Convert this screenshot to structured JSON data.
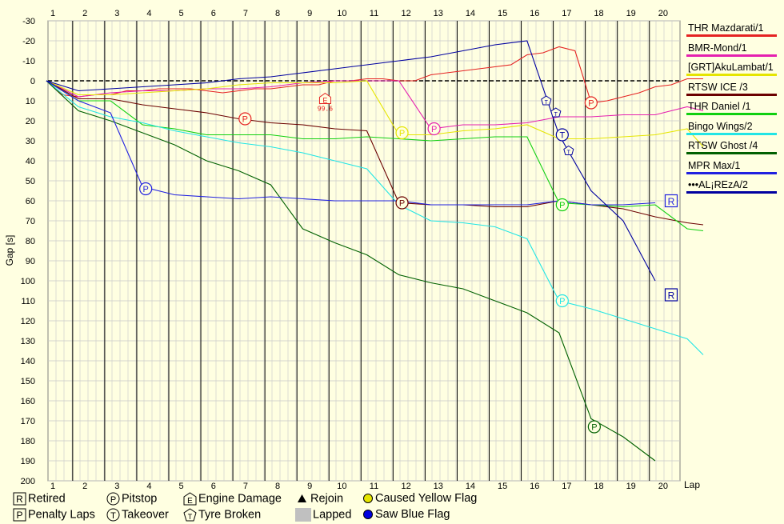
{
  "chart_data": {
    "type": "line",
    "title": "",
    "xlabel": "Lap",
    "ylabel": "Gap [s]",
    "ylim": [
      -30,
      200
    ],
    "y_inverted": true,
    "y_ticks": [
      -30,
      -20,
      -10,
      0,
      10,
      20,
      30,
      40,
      50,
      60,
      70,
      80,
      90,
      100,
      110,
      120,
      130,
      140,
      150,
      160,
      170,
      180,
      190,
      200
    ],
    "x_ticks": [
      1,
      2,
      3,
      4,
      5,
      6,
      7,
      8,
      9,
      10,
      11,
      12,
      13,
      14,
      15,
      16,
      17,
      18,
      19,
      20
    ],
    "grid": true,
    "legend_position": "right",
    "series": [
      {
        "name": "THR Mazdarati/1",
        "color": "#e52222",
        "x": [
          0,
          0.5,
          1,
          1.5,
          2,
          2.5,
          3,
          3.5,
          4,
          4.5,
          5,
          5.5,
          6,
          6.5,
          7,
          7.5,
          8,
          8.5,
          9,
          9.5,
          10,
          10.5,
          11,
          11.5,
          12,
          12.5,
          13,
          13.5,
          14,
          14.5,
          15,
          15.5,
          16,
          16.5,
          17,
          17.5,
          18,
          18.5,
          19,
          19.5,
          20,
          20.5
        ],
        "values": [
          0,
          7,
          8,
          7,
          7,
          5,
          5,
          4,
          4,
          4,
          5,
          6,
          5,
          4,
          4,
          3,
          2,
          2,
          0,
          0,
          -1,
          -1,
          0,
          0,
          -3,
          -4,
          -5,
          -6,
          -7,
          -8,
          -13,
          -14,
          -17,
          -15,
          11,
          10,
          8,
          6,
          3,
          2,
          -1,
          -1
        ]
      },
      {
        "name": "BMR-Mond/1",
        "color": "#e520b0",
        "x": [
          0,
          1,
          2,
          3,
          4,
          5,
          6,
          7,
          8,
          9,
          10,
          11,
          12,
          13,
          14,
          15,
          16,
          17,
          18,
          19,
          20,
          20.5
        ],
        "values": [
          0,
          8,
          6,
          5,
          5,
          4,
          4,
          3,
          1,
          0,
          0,
          0,
          24,
          22,
          22,
          21,
          18,
          18,
          17,
          17,
          13,
          15
        ]
      },
      {
        "name": "[GRT]AkuLambat/1",
        "color": "#e5e500",
        "x": [
          0,
          1,
          2,
          3,
          4,
          5,
          6,
          7,
          8,
          9,
          10,
          11,
          12,
          13,
          14,
          15,
          16,
          17,
          18,
          19,
          20,
          20.5
        ],
        "values": [
          0,
          7,
          7,
          6,
          5,
          4,
          2,
          1,
          1,
          1,
          0,
          27,
          27,
          25,
          24,
          22,
          29,
          29,
          28,
          27,
          24,
          33
        ]
      },
      {
        "name": "RTSW ICE /3",
        "color": "#6b0000",
        "x": [
          0,
          1,
          2,
          3,
          4,
          5,
          6,
          7,
          8,
          9,
          10,
          11,
          12,
          13,
          14,
          15,
          16,
          17,
          18,
          19,
          20,
          20.5
        ],
        "values": [
          0,
          9,
          9,
          12,
          14,
          16,
          19,
          21,
          22,
          24,
          25,
          61,
          62,
          62,
          63,
          63,
          60,
          62,
          64,
          68,
          71,
          72
        ]
      },
      {
        "name": "THR Daniel /1",
        "color": "#10d010",
        "x": [
          0,
          1,
          2,
          3,
          4,
          5,
          6,
          7,
          8,
          9,
          10,
          11,
          12,
          13,
          14,
          15,
          16,
          17,
          18,
          19,
          20,
          20.5
        ],
        "values": [
          0,
          10,
          10,
          22,
          24,
          27,
          27,
          27,
          29,
          29,
          28,
          29,
          30,
          29,
          28,
          28,
          61,
          62,
          63,
          62,
          74,
          75
        ]
      },
      {
        "name": "Bingo Wings/2",
        "color": "#22e5e5",
        "x": [
          0,
          1,
          2,
          3,
          4,
          5,
          6,
          7,
          8,
          9,
          10,
          11,
          12,
          13,
          14,
          15,
          16,
          17,
          18,
          19,
          20,
          20.5
        ],
        "values": [
          0,
          13,
          18,
          21,
          25,
          28,
          31,
          33,
          36,
          40,
          44,
          62,
          70,
          71,
          73,
          79,
          110,
          114,
          119,
          124,
          129,
          137
        ]
      },
      {
        "name": "RTSW Ghost /4",
        "color": "#006000",
        "x": [
          0,
          1,
          2,
          3,
          4,
          5,
          6,
          7,
          8,
          9,
          10,
          11,
          12,
          13,
          14,
          15,
          16,
          17,
          18,
          19
        ],
        "values": [
          0,
          15,
          20,
          26,
          32,
          40,
          45,
          52,
          74,
          81,
          87,
          97,
          101,
          104,
          110,
          116,
          126,
          169,
          178,
          190
        ]
      },
      {
        "name": "MPR Max/1",
        "color": "#2020e0",
        "x": [
          0,
          1,
          2,
          3,
          4,
          5,
          6,
          7,
          8,
          9,
          10,
          11,
          12,
          13,
          14,
          15,
          16,
          17,
          18,
          19,
          20
        ],
        "values": [
          0,
          10,
          16,
          53,
          57,
          58,
          59,
          58,
          59,
          60,
          60,
          60,
          62,
          62,
          62,
          62,
          60,
          62,
          62,
          61,
          null
        ]
      },
      {
        "name": "•••AL¡REzA/2",
        "color": "#0000a0",
        "x": [
          0,
          1,
          2,
          3,
          4,
          5,
          6,
          7,
          8,
          9,
          10,
          11,
          12,
          13,
          14,
          15,
          16,
          17,
          18,
          19
        ],
        "values": [
          0,
          5,
          4,
          3,
          2,
          1,
          -1,
          -2,
          -4,
          -6,
          -8,
          -10,
          -12,
          -15,
          -18,
          -20,
          27,
          55,
          70,
          100
        ]
      }
    ],
    "annotations": [
      {
        "type": "Pitstop",
        "series": "THR Mazdarati/1",
        "lap": 6.4,
        "gap": 19
      },
      {
        "type": "Engine Damage",
        "series": "THR Mazdarati/1",
        "lap": 8.9,
        "gap": 9,
        "label": "99.6"
      },
      {
        "type": "Pitstop",
        "series": "THR Mazdarati/1",
        "lap": 17.2,
        "gap": 11
      },
      {
        "type": "Pitstop",
        "series": "[GRT]AkuLambat/1",
        "lap": 11.3,
        "gap": 26
      },
      {
        "type": "Pitstop",
        "series": "BMR-Mond/1",
        "lap": 12.3,
        "gap": 24
      },
      {
        "type": "Pitstop",
        "series": "RTSW ICE /3",
        "lap": 11.3,
        "gap": 61
      },
      {
        "type": "Pitstop",
        "series": "MPR Max/1",
        "lap": 3.3,
        "gap": 54
      },
      {
        "type": "Pitstop",
        "series": "THR Daniel /1",
        "lap": 16.3,
        "gap": 62
      },
      {
        "type": "Pitstop",
        "series": "Bingo Wings/2",
        "lap": 16.3,
        "gap": 110
      },
      {
        "type": "Pitstop",
        "series": "RTSW Ghost /4",
        "lap": 17.3,
        "gap": 173
      },
      {
        "type": "Takeover",
        "series": "•••AL¡REzA/2",
        "lap": 16.3,
        "gap": 27
      },
      {
        "type": "Tyre Broken",
        "series": "•••AL¡REzA/2",
        "lap": 15.8,
        "gap": 10
      },
      {
        "type": "Tyre Broken",
        "series": "•••AL¡REzA/2",
        "lap": 16.1,
        "gap": 16
      },
      {
        "type": "Tyre Broken",
        "series": "•••AL¡REzA/2",
        "lap": 16.5,
        "gap": 35
      },
      {
        "type": "Retired",
        "series": "MPR Max/1",
        "lap": 19.7,
        "gap": 60
      },
      {
        "type": "Retired",
        "series": "•••AL¡REzA/2",
        "lap": 19.7,
        "gap": 107
      }
    ]
  },
  "axis": {
    "ylabel": "Gap [s]",
    "xlabel": "Lap",
    "top_ticks": [
      "1",
      "2",
      "3",
      "4",
      "5",
      "6",
      "7",
      "8",
      "9",
      "10",
      "11",
      "12",
      "13",
      "14",
      "15",
      "16",
      "17",
      "18",
      "19",
      "20"
    ],
    "bottom_ticks": [
      "1",
      "2",
      "3",
      "4",
      "5",
      "6",
      "7",
      "8",
      "9",
      "10",
      "11",
      "12",
      "13",
      "14",
      "15",
      "16",
      "17",
      "18",
      "19",
      "20"
    ],
    "y_ticks": [
      "-30",
      "-20",
      "-10",
      "0",
      "10",
      "20",
      "30",
      "40",
      "50",
      "60",
      "70",
      "80",
      "90",
      "100",
      "110",
      "120",
      "130",
      "140",
      "150",
      "160",
      "170",
      "180",
      "190",
      "200"
    ]
  },
  "legend": [
    {
      "label": "THR Mazdarati/1",
      "color": "#e52222"
    },
    {
      "label": "BMR-Mond/1",
      "color": "#e520b0"
    },
    {
      "label": "[GRT]AkuLambat/1",
      "color": "#e5e500"
    },
    {
      "label": "RTSW ICE /3",
      "color": "#6b0000"
    },
    {
      "label": "THR Daniel /1",
      "color": "#10d010"
    },
    {
      "label": "Bingo Wings/2",
      "color": "#22e5e5"
    },
    {
      "label": "RTSW Ghost /4",
      "color": "#006000"
    },
    {
      "label": "MPR Max/1",
      "color": "#2020e0"
    },
    {
      "label": "•••AL¡REzA/2",
      "color": "#0000a0"
    }
  ],
  "key": {
    "retired": "Retired",
    "pitstop": "Pitstop",
    "engine_damage": "Engine Damage",
    "rejoin": "Rejoin",
    "caused_yellow": "Caused Yellow Flag",
    "penalty_laps": "Penalty Laps",
    "takeover": "Takeover",
    "tyre_broken": "Tyre Broken",
    "lapped": "Lapped",
    "saw_blue": "Saw Blue Flag"
  },
  "engine_damage_label": "99.6"
}
